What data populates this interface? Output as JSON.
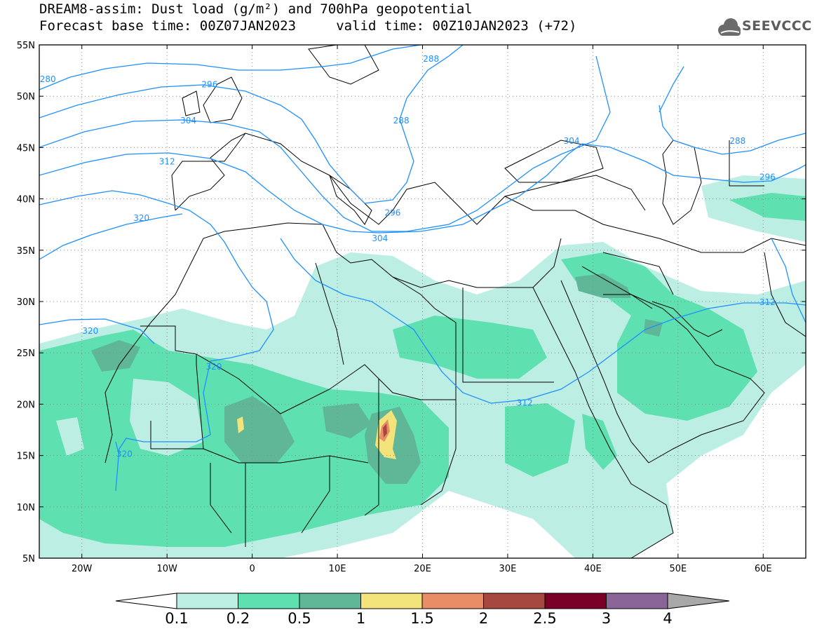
{
  "header": {
    "title_line1": "DREAM8-assim: Dust load (g/m²) and 700hPa geopotential",
    "title_line2": "Forecast base time: 00Z07JAN2023     valid time: 00Z10JAN2023 (+72)",
    "logo_text": "SEEVCCC"
  },
  "map": {
    "lon_range": [
      -25,
      65
    ],
    "lat_range": [
      5,
      55
    ],
    "lat_ticks": [
      {
        "value": 55,
        "label": "55N"
      },
      {
        "value": 50,
        "label": "50N"
      },
      {
        "value": 45,
        "label": "45N"
      },
      {
        "value": 40,
        "label": "40N"
      },
      {
        "value": 35,
        "label": "35N"
      },
      {
        "value": 30,
        "label": "30N"
      },
      {
        "value": 25,
        "label": "25N"
      },
      {
        "value": 20,
        "label": "20N"
      },
      {
        "value": 15,
        "label": "15N"
      },
      {
        "value": 10,
        "label": "10N"
      },
      {
        "value": 5,
        "label": "5N"
      }
    ],
    "lon_ticks": [
      {
        "value": -20,
        "label": "20W"
      },
      {
        "value": -10,
        "label": "10W"
      },
      {
        "value": 0,
        "label": "0"
      },
      {
        "value": 10,
        "label": "10E"
      },
      {
        "value": 20,
        "label": "20E"
      },
      {
        "value": 30,
        "label": "30E"
      },
      {
        "value": 40,
        "label": "40E"
      },
      {
        "value": 50,
        "label": "50E"
      },
      {
        "value": 60,
        "label": "60E"
      }
    ],
    "grid": true,
    "contour_color": "#1e90ff",
    "coast_color": "#000000",
    "geopotential_labels": [
      {
        "text": "280",
        "lon": -24,
        "lat": 51.5
      },
      {
        "text": "288",
        "lon": 21,
        "lat": 53.5
      },
      {
        "text": "296",
        "lon": -5,
        "lat": 51
      },
      {
        "text": "304",
        "lon": -7.5,
        "lat": 47.5
      },
      {
        "text": "312",
        "lon": -10,
        "lat": 43.5
      },
      {
        "text": "320",
        "lon": -13,
        "lat": 38
      },
      {
        "text": "320",
        "lon": -19,
        "lat": 27
      },
      {
        "text": "320",
        "lon": -4.5,
        "lat": 23.5
      },
      {
        "text": "320",
        "lon": -15,
        "lat": 15
      },
      {
        "text": "288",
        "lon": 17.5,
        "lat": 47.5
      },
      {
        "text": "296",
        "lon": 16.5,
        "lat": 38.5
      },
      {
        "text": "304",
        "lon": 15,
        "lat": 36
      },
      {
        "text": "304",
        "lon": 37.5,
        "lat": 45.5
      },
      {
        "text": "288",
        "lon": 57,
        "lat": 45.5
      },
      {
        "text": "296",
        "lon": 60.5,
        "lat": 42
      },
      {
        "text": "312",
        "lon": 60.5,
        "lat": 29.8
      },
      {
        "text": "312",
        "lon": 32,
        "lat": 20
      }
    ]
  },
  "dust_levels": [
    {
      "range": "0.1-0.2",
      "color": "#bdeee4"
    },
    {
      "range": "0.2-0.5",
      "color": "#5ee0b1"
    },
    {
      "range": "0.5-1",
      "color": "#5fb797"
    },
    {
      "range": "1-1.5",
      "color": "#f2e37b"
    },
    {
      "range": "1.5-2",
      "color": "#e98d66"
    },
    {
      "range": "2-2.5",
      "color": "#a6483f"
    },
    {
      "range": "2.5-3",
      "color": "#7a0028"
    },
    {
      "range": "3-4",
      "color": "#8a6598"
    }
  ],
  "colorbar": {
    "labels": [
      "0.1",
      "0.2",
      "0.5",
      "1",
      "1.5",
      "2",
      "2.5",
      "3",
      "4"
    ],
    "under_color": "#ffffff",
    "over_color": "#a8a8a8"
  }
}
